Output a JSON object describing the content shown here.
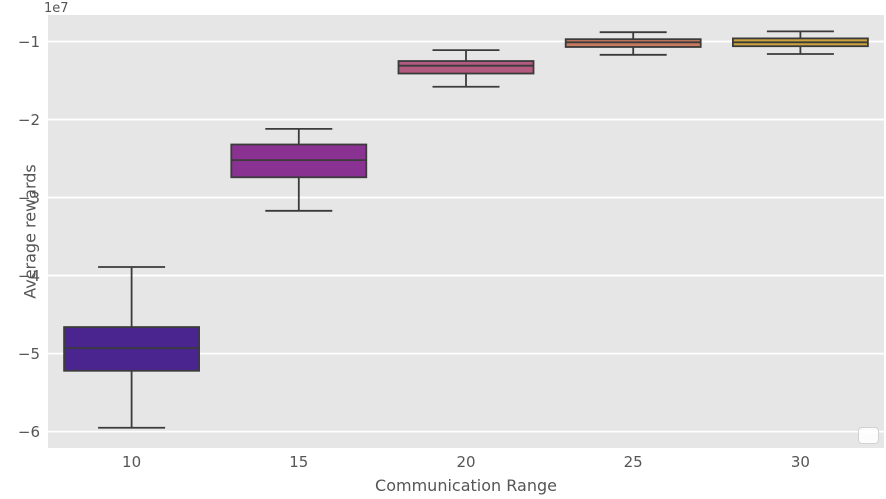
{
  "figure": {
    "offset_label": "1e7",
    "background": "#ffffff",
    "plot_background": "#e6e6e6",
    "grid_color": "#ffffff",
    "text_color": "#555555",
    "box_edge_color": "#3b3b3b"
  },
  "chart_data": {
    "type": "boxplot",
    "title": "",
    "xlabel": "Communication Range",
    "ylabel": "Average rewards",
    "y_offset_multiplier": "1e7",
    "categories": [
      "10",
      "15",
      "20",
      "25",
      "30"
    ],
    "yticks": [
      -1,
      -2,
      -3,
      -4,
      -5,
      -6
    ],
    "ylim": [
      -6.21,
      -0.66
    ],
    "grid": "horizontal-only",
    "legend": "empty-placeholder-bottom-right",
    "series": [
      {
        "category": "10",
        "whisker_low": -5.95,
        "q1": -5.22,
        "median": -4.93,
        "q3": -4.66,
        "whisker_high": -3.89,
        "color": "#4a2590"
      },
      {
        "category": "15",
        "whisker_low": -3.17,
        "q1": -2.74,
        "median": -2.52,
        "q3": -2.32,
        "whisker_high": -2.12,
        "color": "#8a3292"
      },
      {
        "category": "20",
        "whisker_low": -1.58,
        "q1": -1.41,
        "median": -1.31,
        "q3": -1.25,
        "whisker_high": -1.11,
        "color": "#b25a80"
      },
      {
        "category": "25",
        "whisker_low": -1.17,
        "q1": -1.07,
        "median": -1.01,
        "q3": -0.97,
        "whisker_high": -0.88,
        "color": "#c77a5e"
      },
      {
        "category": "30",
        "whisker_low": -1.16,
        "q1": -1.06,
        "median": -1.01,
        "q3": -0.96,
        "whisker_high": -0.87,
        "color": "#cca43d"
      }
    ]
  }
}
